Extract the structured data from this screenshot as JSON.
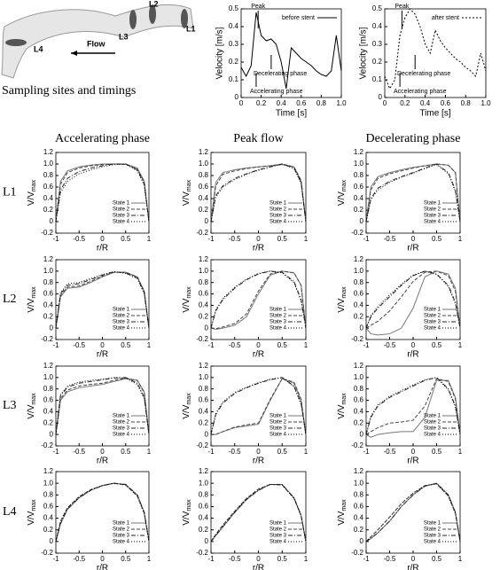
{
  "diagram": {
    "labels": [
      "L1",
      "L2",
      "L3",
      "L4"
    ],
    "flow": "Flow",
    "caption": "Sampling sites and timings"
  },
  "column_titles": [
    "Accelerating phase",
    "Peak flow",
    "Decelerating phase"
  ],
  "row_labels": [
    "L1",
    "L2",
    "L3",
    "L4"
  ],
  "states": [
    {
      "name": "State 1",
      "color": "#777777",
      "dash": ""
    },
    {
      "name": "State 2",
      "color": "#444444",
      "dash": "4 2"
    },
    {
      "name": "State 3",
      "color": "#222222",
      "dash": "5 2 1 2"
    },
    {
      "name": "State 4",
      "color": "#000000",
      "dash": "1 2"
    }
  ],
  "panel_axes": {
    "xlim": [
      -1,
      1
    ],
    "ylim": [
      -0.2,
      1.2
    ],
    "xticks": [
      -1,
      -0.5,
      0,
      0.5,
      1
    ],
    "yticks": [
      -0.2,
      0,
      0.2,
      0.4,
      0.6,
      0.8,
      {
        "value": 1,
        "label": "1.0"
      },
      1.2
    ],
    "xlabel": "r/R",
    "ylabel": "V/V",
    "ylabel_subscript": "max"
  },
  "chart_data": [
    {
      "type": "line",
      "xlabel": "Time [s]",
      "ylabel": "Velocity [m/s]",
      "xlim": [
        0,
        1
      ],
      "ylim": [
        0,
        0.5
      ],
      "xticks": [
        0,
        0.2,
        0.4,
        0.6,
        0.8,
        {
          "value": 1,
          "label": "1.0"
        }
      ],
      "yticks": [
        0,
        0.1,
        0.2,
        0.3,
        0.4,
        0.5
      ],
      "annotations": [
        "Peak",
        "Decelerating phase",
        "Accelerating phase"
      ],
      "x": [
        0,
        0.05,
        0.1,
        0.15,
        0.2,
        0.25,
        0.3,
        0.35,
        0.4,
        0.45,
        0.5,
        0.55,
        0.6,
        0.65,
        0.7,
        0.75,
        0.8,
        0.85,
        0.9,
        0.95,
        1
      ],
      "series": [
        {
          "name": "before stent",
          "color": "#000000",
          "values": [
            0.17,
            0.12,
            0.18,
            0.48,
            0.35,
            0.32,
            0.33,
            0.3,
            0.2,
            0.05,
            0.28,
            0.25,
            0.22,
            0.2,
            0.18,
            0.15,
            0.13,
            0.12,
            0.15,
            0.35,
            0.15
          ]
        }
      ]
    },
    {
      "type": "line",
      "xlabel": "Time [s]",
      "ylabel": "Velocity [m/s]",
      "xlim": [
        0,
        1
      ],
      "ylim": [
        0,
        0.5
      ],
      "xticks": [
        0,
        0.2,
        0.4,
        0.6,
        0.8,
        {
          "value": 1,
          "label": "1.0"
        }
      ],
      "yticks": [
        0,
        0.1,
        0.2,
        0.3,
        0.4,
        0.5
      ],
      "annotations": [
        "Peak",
        "Decelerating phase",
        "Accelerating phase"
      ],
      "x": [
        0,
        0.05,
        0.1,
        0.15,
        0.2,
        0.25,
        0.3,
        0.35,
        0.4,
        0.45,
        0.5,
        0.55,
        0.6,
        0.65,
        0.7,
        0.75,
        0.8,
        0.85,
        0.9,
        0.95,
        1
      ],
      "series": [
        {
          "name": "after stent",
          "color": "#000000",
          "dash": "2 2",
          "values": [
            0.12,
            0.05,
            0.1,
            0.35,
            0.45,
            0.5,
            0.47,
            0.4,
            0.3,
            0.25,
            0.38,
            0.32,
            0.28,
            0.25,
            0.22,
            0.2,
            0.17,
            0.15,
            0.12,
            0.25,
            0.15
          ]
        }
      ]
    },
    {
      "type": "profile",
      "x": [
        -1,
        -0.9,
        -0.75,
        -0.5,
        -0.25,
        0,
        0.25,
        0.5,
        0.75,
        0.9,
        1
      ],
      "series": [
        [
          0,
          0.7,
          0.88,
          0.95,
          0.98,
          1,
          1,
          1,
          0.93,
          0.7,
          0
        ],
        [
          0,
          0.65,
          0.85,
          0.93,
          0.97,
          0.99,
          1,
          0.99,
          0.92,
          0.68,
          0
        ],
        [
          0,
          0.55,
          0.75,
          0.87,
          0.93,
          0.97,
          1,
          1,
          0.9,
          0.65,
          0
        ],
        [
          0,
          0.5,
          0.7,
          0.83,
          0.9,
          0.95,
          0.99,
          1,
          0.88,
          0.63,
          0
        ]
      ]
    },
    {
      "type": "profile",
      "x": [
        -1,
        -0.9,
        -0.75,
        -0.5,
        -0.25,
        0,
        0.25,
        0.5,
        0.75,
        0.9,
        1
      ],
      "series": [
        [
          0,
          0.68,
          0.85,
          0.9,
          0.93,
          0.95,
          0.97,
          0.99,
          0.95,
          0.7,
          0
        ],
        [
          0,
          0.62,
          0.82,
          0.88,
          0.92,
          0.95,
          0.97,
          1,
          0.95,
          0.72,
          0
        ],
        [
          0,
          0.45,
          0.62,
          0.75,
          0.83,
          0.9,
          0.95,
          1,
          0.93,
          0.68,
          0
        ],
        [
          0,
          0.42,
          0.6,
          0.73,
          0.82,
          0.89,
          0.95,
          1,
          0.92,
          0.67,
          0
        ]
      ]
    },
    {
      "type": "profile",
      "x": [
        -1,
        -0.9,
        -0.75,
        -0.5,
        -0.25,
        0,
        0.25,
        0.5,
        0.75,
        0.9,
        1
      ],
      "series": [
        [
          0,
          0.6,
          0.78,
          0.85,
          0.9,
          0.94,
          0.97,
          1,
          0.98,
          0.85,
          0
        ],
        [
          0,
          0.55,
          0.75,
          0.83,
          0.88,
          0.93,
          0.97,
          1,
          0.98,
          0.85,
          0
        ],
        [
          0,
          0.4,
          0.58,
          0.7,
          0.78,
          0.85,
          0.93,
          1,
          0.85,
          0.55,
          0
        ],
        [
          0,
          0.38,
          0.55,
          0.68,
          0.77,
          0.84,
          0.92,
          0.99,
          0.83,
          0.52,
          0
        ]
      ]
    },
    {
      "type": "profile",
      "x": [
        -1,
        -0.9,
        -0.75,
        -0.5,
        -0.25,
        0,
        0.25,
        0.5,
        0.75,
        0.9,
        1
      ],
      "series": [
        [
          0,
          0.55,
          0.7,
          0.72,
          0.8,
          0.9,
          0.98,
          0.98,
          0.9,
          0.65,
          0
        ],
        [
          0,
          0.57,
          0.72,
          0.74,
          0.82,
          0.91,
          0.98,
          0.98,
          0.9,
          0.64,
          0
        ],
        [
          0,
          0.6,
          0.75,
          0.78,
          0.85,
          0.93,
          0.99,
          0.97,
          0.88,
          0.62,
          0
        ],
        [
          0,
          0.62,
          0.78,
          0.8,
          0.87,
          0.94,
          0.99,
          0.96,
          0.87,
          0.6,
          0
        ]
      ]
    },
    {
      "type": "profile",
      "x": [
        -1,
        -0.9,
        -0.75,
        -0.5,
        -0.25,
        0,
        0.25,
        0.5,
        0.75,
        0.9,
        1
      ],
      "series": [
        [
          0,
          -0.02,
          0,
          0.05,
          0.2,
          0.6,
          0.93,
          1,
          0.97,
          0.75,
          0
        ],
        [
          0,
          -0.01,
          0.02,
          0.08,
          0.25,
          0.65,
          0.95,
          1,
          0.97,
          0.75,
          0
        ],
        [
          0,
          0.3,
          0.5,
          0.7,
          0.85,
          0.95,
          1,
          0.98,
          0.82,
          0.5,
          0
        ],
        [
          0,
          0.32,
          0.52,
          0.72,
          0.86,
          0.96,
          1,
          0.97,
          0.8,
          0.48,
          0
        ]
      ]
    },
    {
      "type": "profile",
      "x": [
        -1,
        -0.9,
        -0.75,
        -0.5,
        -0.25,
        0,
        0.25,
        0.5,
        0.75,
        0.9,
        1
      ],
      "series": [
        [
          0,
          -0.1,
          -0.12,
          -0.1,
          0,
          0.35,
          0.9,
          1,
          0.95,
          0.7,
          0
        ],
        [
          0,
          0.05,
          0.12,
          0.3,
          0.55,
          0.82,
          0.98,
          1,
          0.92,
          0.65,
          0
        ],
        [
          0,
          0.2,
          0.35,
          0.55,
          0.75,
          0.92,
          1,
          0.95,
          0.75,
          0.45,
          0
        ],
        [
          0,
          0.22,
          0.38,
          0.58,
          0.77,
          0.93,
          1,
          0.94,
          0.73,
          0.43,
          0
        ]
      ]
    },
    {
      "type": "profile",
      "x": [
        -1,
        -0.9,
        -0.75,
        -0.5,
        -0.25,
        0,
        0.25,
        0.5,
        0.75,
        0.9,
        1
      ],
      "series": [
        [
          0,
          0.6,
          0.75,
          0.82,
          0.85,
          0.88,
          0.93,
          0.98,
          0.95,
          0.75,
          0
        ],
        [
          0,
          0.63,
          0.78,
          0.85,
          0.88,
          0.9,
          0.95,
          0.99,
          0.95,
          0.73,
          0
        ],
        [
          0,
          0.68,
          0.83,
          0.9,
          0.93,
          0.96,
          0.99,
          1,
          0.9,
          0.65,
          0
        ],
        [
          0,
          0.7,
          0.85,
          0.92,
          0.95,
          0.97,
          1,
          0.99,
          0.88,
          0.63,
          0
        ]
      ]
    },
    {
      "type": "profile",
      "x": [
        -1,
        -0.9,
        -0.75,
        -0.5,
        -0.25,
        0,
        0.25,
        0.5,
        0.75,
        0.9,
        1
      ],
      "series": [
        [
          0,
          0,
          0.05,
          0.12,
          0.15,
          0.18,
          0.6,
          0.98,
          0.9,
          0.6,
          0
        ],
        [
          0,
          0,
          0.05,
          0.13,
          0.17,
          0.2,
          0.62,
          0.98,
          0.92,
          0.62,
          0
        ],
        [
          0,
          0.35,
          0.55,
          0.72,
          0.82,
          0.9,
          0.96,
          1,
          0.85,
          0.55,
          0
        ],
        [
          0,
          0.37,
          0.57,
          0.74,
          0.83,
          0.91,
          0.97,
          1,
          0.84,
          0.53,
          0
        ]
      ]
    },
    {
      "type": "profile",
      "x": [
        -1,
        -0.9,
        -0.75,
        -0.5,
        -0.25,
        0,
        0.25,
        0.5,
        0.75,
        0.9,
        1
      ],
      "series": [
        [
          0,
          -0.05,
          0,
          0.03,
          0.05,
          0.05,
          0.3,
          0.95,
          0.95,
          0.65,
          0
        ],
        [
          0,
          0.05,
          0.12,
          0.2,
          0.22,
          0.25,
          0.5,
          0.98,
          0.93,
          0.62,
          0
        ],
        [
          0,
          0.3,
          0.5,
          0.65,
          0.75,
          0.85,
          0.95,
          1,
          0.8,
          0.5,
          0
        ],
        [
          0,
          0.32,
          0.52,
          0.67,
          0.77,
          0.87,
          0.96,
          1,
          0.78,
          0.48,
          0
        ]
      ]
    },
    {
      "type": "profile",
      "x": [
        -1,
        -0.9,
        -0.75,
        -0.5,
        -0.25,
        0,
        0.25,
        0.5,
        0.75,
        0.9,
        1
      ],
      "series": [
        [
          0,
          0.3,
          0.55,
          0.75,
          0.88,
          0.96,
          1,
          0.98,
          0.8,
          0.5,
          0
        ],
        [
          0,
          0.35,
          0.58,
          0.77,
          0.89,
          0.96,
          1,
          0.97,
          0.78,
          0.48,
          0
        ],
        [
          0,
          0.31,
          0.56,
          0.75,
          0.88,
          0.96,
          1,
          0.98,
          0.8,
          0.5,
          0
        ],
        [
          0,
          0.35,
          0.58,
          0.77,
          0.89,
          0.96,
          1,
          0.97,
          0.78,
          0.48,
          0
        ]
      ]
    },
    {
      "type": "profile",
      "x": [
        -1,
        -0.9,
        -0.75,
        -0.5,
        -0.25,
        0,
        0.25,
        0.5,
        0.75,
        0.9,
        1
      ],
      "series": [
        [
          0,
          0.1,
          0.25,
          0.5,
          0.72,
          0.88,
          0.98,
          0.98,
          0.75,
          0.45,
          0
        ],
        [
          0,
          0.12,
          0.28,
          0.52,
          0.74,
          0.9,
          0.98,
          0.97,
          0.74,
          0.44,
          0
        ],
        [
          0,
          0.1,
          0.25,
          0.5,
          0.72,
          0.88,
          0.98,
          0.98,
          0.75,
          0.45,
          0
        ],
        [
          0,
          0.12,
          0.28,
          0.52,
          0.74,
          0.9,
          0.98,
          0.97,
          0.74,
          0.44,
          0
        ]
      ]
    },
    {
      "type": "profile",
      "x": [
        -1,
        -0.9,
        -0.75,
        -0.5,
        -0.25,
        0,
        0.25,
        0.5,
        0.75,
        0.9,
        1
      ],
      "series": [
        [
          0,
          0.05,
          0.15,
          0.35,
          0.6,
          0.8,
          0.95,
          1,
          0.8,
          0.5,
          0
        ],
        [
          0,
          0.08,
          0.2,
          0.42,
          0.65,
          0.83,
          0.96,
          0.99,
          0.78,
          0.48,
          0
        ],
        [
          0,
          0.05,
          0.15,
          0.35,
          0.6,
          0.8,
          0.95,
          1,
          0.8,
          0.5,
          0
        ],
        [
          0,
          0.08,
          0.2,
          0.42,
          0.65,
          0.83,
          0.96,
          0.99,
          0.78,
          0.48,
          0
        ]
      ]
    }
  ]
}
